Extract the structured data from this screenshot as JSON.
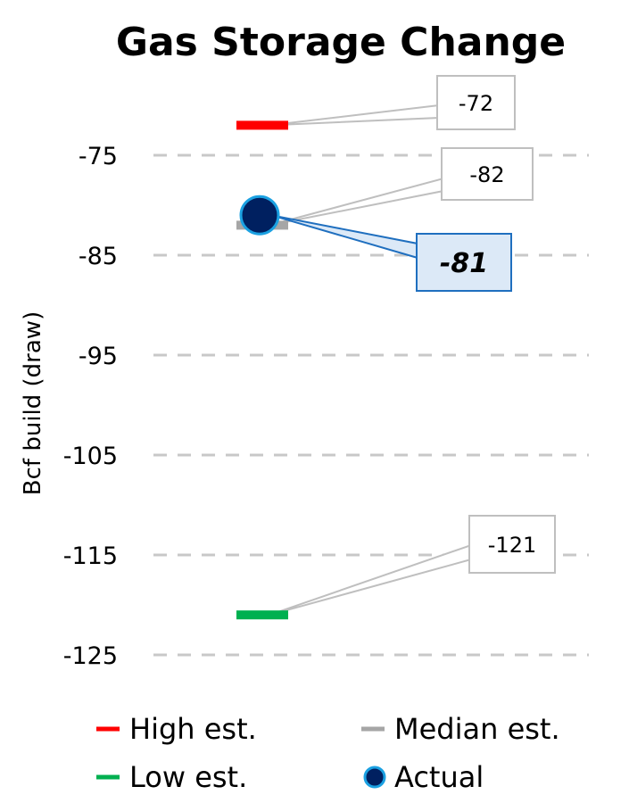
{
  "chart_data": {
    "type": "scatter",
    "title": "Gas Storage Change",
    "ylabel": "Bcf build (draw)",
    "ylim": [
      -125,
      -70
    ],
    "yticks": [
      -75,
      -85,
      -95,
      -105,
      -115,
      -125
    ],
    "grid": true,
    "series": [
      {
        "name": "High est.",
        "value": -72,
        "color": "#ff0000",
        "marker": "dash"
      },
      {
        "name": "Median est.",
        "value": -82,
        "color": "#a6a6a6",
        "marker": "dash"
      },
      {
        "name": "Low est.",
        "value": -121,
        "color": "#00b050",
        "marker": "dash"
      },
      {
        "name": "Actual",
        "value": -81,
        "color": "#002060",
        "edge": "#1ba1e2",
        "marker": "circle"
      }
    ],
    "labels": {
      "high": "-72",
      "median": "-82",
      "low": "-121",
      "actual": "-81"
    },
    "legend_placement": "bottom"
  }
}
